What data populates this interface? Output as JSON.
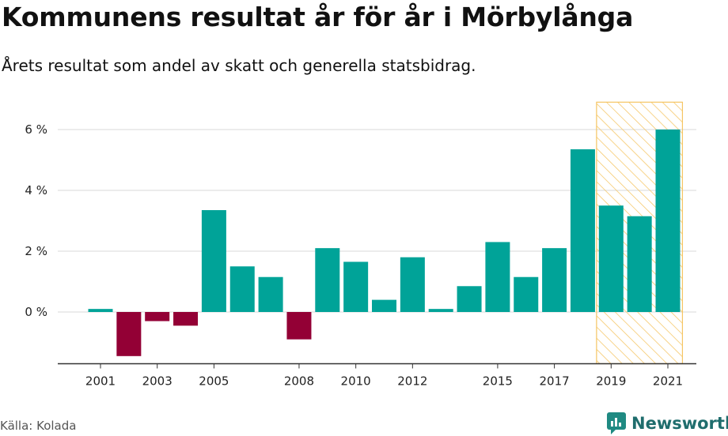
{
  "title": "Kommunens resultat år för år i Mörbylånga",
  "subtitle": "Årets resultat som andel av skatt och generella statsbidrag.",
  "source": "Källa: Kolada",
  "brand": "Newsworthy",
  "colors": {
    "positive": "#00a398",
    "negative": "#930035",
    "highlight_stroke": "#f5c563",
    "grid": "#d9d9d9",
    "axis": "#333333"
  },
  "chart_data": {
    "type": "bar",
    "categories": [
      2001,
      2002,
      2003,
      2004,
      2005,
      2006,
      2007,
      2008,
      2009,
      2010,
      2011,
      2012,
      2013,
      2014,
      2015,
      2016,
      2017,
      2018,
      2019,
      2020,
      2021
    ],
    "x_tick_labels": [
      "2001",
      "2003",
      "2005",
      "2008",
      "2010",
      "2012",
      "2015",
      "2017",
      "2019",
      "2021"
    ],
    "values": [
      0.1,
      -1.45,
      -0.3,
      -0.45,
      3.35,
      1.5,
      1.15,
      -0.9,
      2.1,
      1.65,
      0.4,
      1.8,
      0.1,
      0.85,
      2.3,
      1.15,
      2.1,
      5.35,
      3.5,
      3.15,
      6.0
    ],
    "y_ticks": [
      0,
      2,
      4,
      6
    ],
    "y_tick_labels": [
      "0 %",
      "2 %",
      "4 %",
      "6 %"
    ],
    "ylim": [
      -1.7,
      6.9
    ],
    "highlight_range": [
      2019,
      2021
    ],
    "grid": true
  }
}
